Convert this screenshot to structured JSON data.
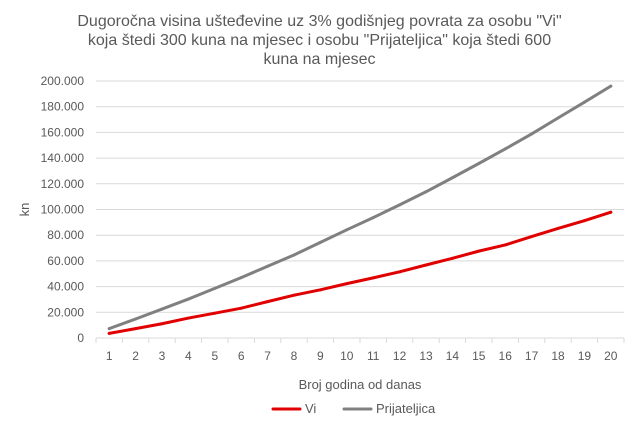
{
  "chart_data": {
    "type": "line",
    "title_lines": [
      "Dugoročna visina ušteđevine uz 3% godišnjeg povrata za osobu \"Vi\"",
      "koja štedi 300 kuna na mjesec i osobu \"Prijateljica\" koja štedi 600",
      "kuna na mjesec"
    ],
    "xlabel": "Broj godina od danas",
    "ylabel": "kn",
    "x": [
      1,
      2,
      3,
      4,
      5,
      6,
      7,
      8,
      9,
      10,
      11,
      12,
      13,
      14,
      15,
      16,
      17,
      18,
      19,
      20
    ],
    "ylim": [
      0,
      200000
    ],
    "yticks": [
      {
        "value": 0,
        "label": "0"
      },
      {
        "value": 20000,
        "label": "20.000"
      },
      {
        "value": 40000,
        "label": "40.000"
      },
      {
        "value": 60000,
        "label": "60.000"
      },
      {
        "value": 80000,
        "label": "80.000"
      },
      {
        "value": 100000,
        "label": "100.000"
      },
      {
        "value": 120000,
        "label": "120.000"
      },
      {
        "value": 140000,
        "label": "140.000"
      },
      {
        "value": 160000,
        "label": "160.000"
      },
      {
        "value": 180000,
        "label": "180.000"
      },
      {
        "value": 200000,
        "label": "200.000"
      }
    ],
    "grid": true,
    "legend_position": "bottom",
    "series": [
      {
        "name": "Vi",
        "color": "#e10000",
        "values": [
          3600,
          7300,
          11100,
          15500,
          19300,
          23200,
          28300,
          33300,
          37500,
          42300,
          46800,
          51500,
          56800,
          62000,
          67600,
          72400,
          78900,
          85300,
          91300,
          97900
        ]
      },
      {
        "name": "Prijateljica",
        "color": "#808080",
        "values": [
          7300,
          14800,
          22500,
          30300,
          38600,
          47000,
          55800,
          64600,
          74400,
          84200,
          93700,
          103600,
          113800,
          124700,
          135800,
          147100,
          158800,
          171200,
          183500,
          196000
        ]
      }
    ]
  }
}
